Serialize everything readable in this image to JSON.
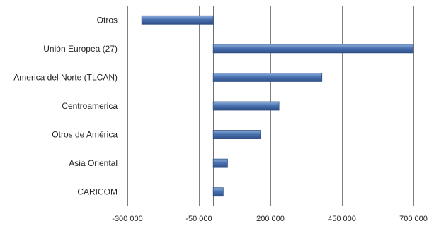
{
  "chart_data": {
    "type": "bar",
    "orientation": "horizontal",
    "categories": [
      "Otros",
      "Unión Europea (27)",
      "America del Norte (TLCAN)",
      "Centroamerica",
      "Otros de América",
      "Asia Oriental",
      "CARICOM"
    ],
    "values": [
      -250000,
      700000,
      380000,
      230000,
      165000,
      50000,
      35000
    ],
    "xlim": [
      -300000,
      700000
    ],
    "xticks": [
      -300000,
      -50000,
      200000,
      450000,
      700000
    ],
    "xtick_labels": [
      "-300 000",
      "-50 000",
      "200 000",
      "450 000",
      "700 000"
    ],
    "grid": true,
    "legend": "none",
    "title": "",
    "xlabel": "",
    "ylabel": "",
    "colors": {
      "bar": "#4a72b0",
      "bar_dark": "#2f4f86",
      "bar_light": "#8fb0dc",
      "grid": "#7f7f7f"
    }
  }
}
